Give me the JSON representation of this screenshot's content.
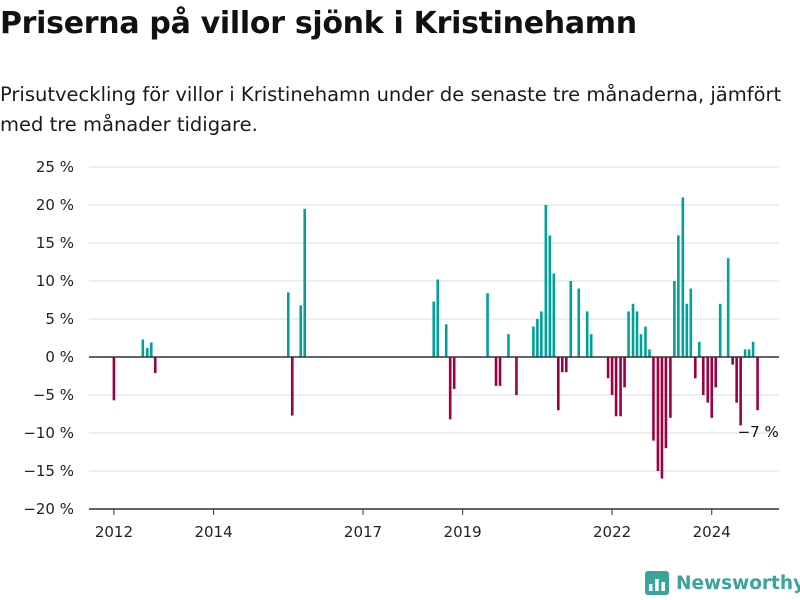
{
  "title": "Priserna på villor sjönk i Kristinehamn",
  "subtitle": "Prisutveckling för villor i Kristinehamn under de senaste tre månaderna, jämfört med tre månader tidigare.",
  "brand": "Newsworthy",
  "colors": {
    "positive": "#00a19a",
    "negative": "#9c0040",
    "grid": "#dddddd",
    "axis": "#333333",
    "brand": "#3aa39b"
  },
  "chart_data": {
    "type": "bar",
    "title": "",
    "xlabel": "",
    "ylabel": "",
    "ylim": [
      -20,
      25
    ],
    "xlim": [
      2011.5,
      2025.35
    ],
    "grid": true,
    "y_ticks": [
      25,
      20,
      15,
      10,
      5,
      0,
      -5,
      -10,
      -15,
      -20
    ],
    "y_tick_labels": [
      "25 %",
      "20 %",
      "15 %",
      "10 %",
      "5 %",
      "0 %",
      "−5 %",
      "−10 %",
      "−15 %",
      "−20 %"
    ],
    "x_ticks": [
      2012,
      2014,
      2017,
      2019,
      2022,
      2024
    ],
    "x_tick_labels": [
      "2012",
      "2014",
      "2017",
      "2019",
      "2022",
      "2024"
    ],
    "end_label": "−7 %",
    "series": [
      {
        "x": [
          2012.0,
          2012.58,
          2012.67,
          2012.75,
          2012.83,
          2015.5,
          2015.58,
          2015.75,
          2015.83,
          2018.42,
          2018.5,
          2018.67,
          2018.75,
          2018.83,
          2019.5,
          2019.67,
          2019.75,
          2019.92,
          2020.08,
          2020.42,
          2020.5,
          2020.58,
          2020.67,
          2020.75,
          2020.83,
          2020.92,
          2021.0,
          2021.08,
          2021.17,
          2021.33,
          2021.5,
          2021.58,
          2021.92,
          2022.0,
          2022.08,
          2022.17,
          2022.25,
          2022.33,
          2022.42,
          2022.5,
          2022.58,
          2022.67,
          2022.75,
          2022.83,
          2022.92,
          2023.0,
          2023.08,
          2023.17,
          2023.25,
          2023.33,
          2023.42,
          2023.5,
          2023.58,
          2023.67,
          2023.75,
          2023.83,
          2023.92,
          2024.0,
          2024.08,
          2024.17,
          2024.33,
          2024.42,
          2024.5,
          2024.58,
          2024.67,
          2024.75,
          2024.83,
          2024.92
        ],
        "values": [
          -5.7,
          2.3,
          1.2,
          1.9,
          -2.1,
          8.5,
          -7.7,
          6.8,
          19.5,
          7.3,
          10.2,
          4.3,
          -8.2,
          -4.2,
          8.4,
          -3.8,
          -3.8,
          3.0,
          -5.0,
          4.0,
          5.0,
          6.0,
          20.0,
          16.0,
          11.0,
          -7.0,
          -2.0,
          -2.0,
          10.0,
          9.0,
          6.0,
          3.0,
          -2.8,
          -5.0,
          -7.8,
          -7.8,
          -4.0,
          6.0,
          7.0,
          6.0,
          3.0,
          4.0,
          1.0,
          -11.0,
          -15.0,
          -16.0,
          -12.0,
          -8.0,
          10.0,
          16.0,
          21.0,
          7.0,
          9.0,
          -2.8,
          2.0,
          -5.0,
          -6.0,
          -8.0,
          -4.0,
          7.0,
          13.0,
          -1.0,
          -6.0,
          -9.0,
          1.0,
          1.0,
          2.0,
          -7.0
        ]
      }
    ]
  }
}
